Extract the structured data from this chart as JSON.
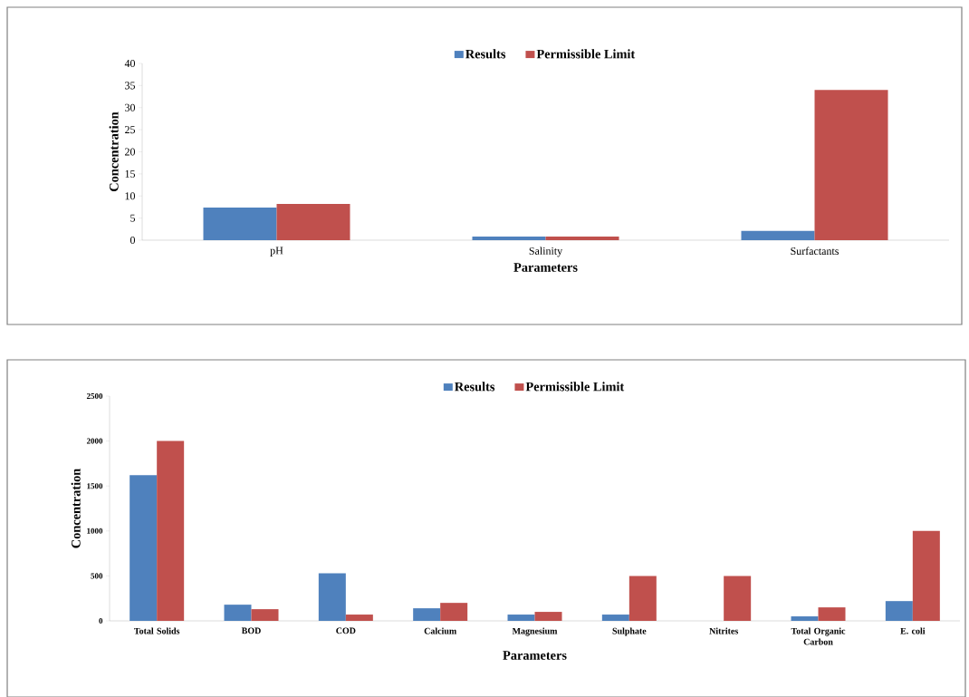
{
  "chart_data": [
    {
      "type": "bar",
      "categories": [
        "pH",
        "Salinity",
        "Surfactants"
      ],
      "series": [
        {
          "name": "Results",
          "color": "#4f81bd",
          "values": [
            7.4,
            0.8,
            2.1
          ]
        },
        {
          "name": "Permissible Limit",
          "color": "#c0504d",
          "values": [
            8.2,
            0.8,
            34
          ]
        }
      ],
      "xlabel": "Parameters",
      "ylabel": "Concentration",
      "ylim": [
        0,
        40
      ],
      "yticks": [
        0,
        5,
        10,
        15,
        20,
        25,
        30,
        35,
        40
      ],
      "legend": "top"
    },
    {
      "type": "bar",
      "categories": [
        "Total Solids",
        "BOD",
        "COD",
        "Calcium",
        "Magnesium",
        "Sulphate",
        "Nitrites",
        "Total Organic Carbon",
        "E. coli"
      ],
      "series": [
        {
          "name": "Results",
          "color": "#4f81bd",
          "values": [
            1620,
            180,
            530,
            140,
            70,
            70,
            0,
            50,
            220
          ]
        },
        {
          "name": "Permissible Limit",
          "color": "#c0504d",
          "values": [
            2000,
            130,
            70,
            200,
            100,
            500,
            500,
            150,
            1000
          ]
        }
      ],
      "xlabel": "Parameters",
      "ylabel": "Concentration",
      "ylim": [
        0,
        2500
      ],
      "yticks": [
        0,
        500,
        1000,
        1500,
        2000,
        2500
      ],
      "legend": "top"
    }
  ]
}
